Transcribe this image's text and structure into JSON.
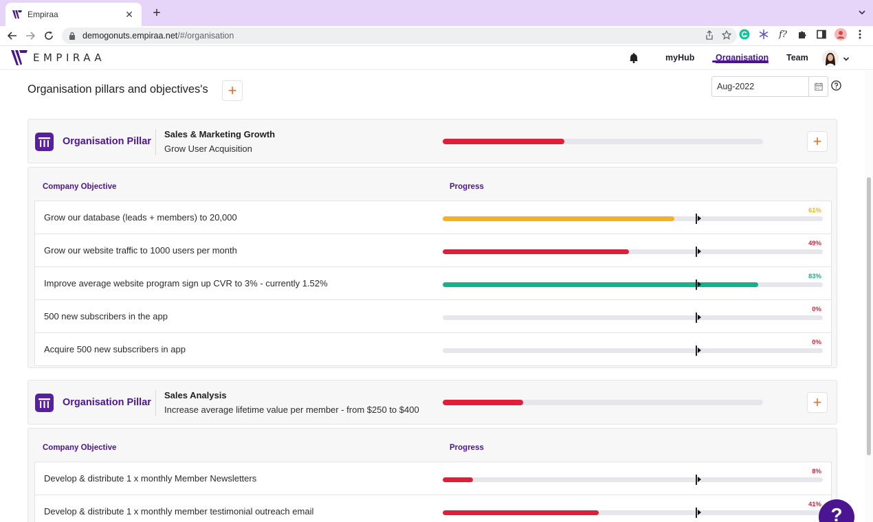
{
  "browser": {
    "tab_title": "Empiraa",
    "url_host": "demogonuts.empiraa.net",
    "url_path": "/#/organisation"
  },
  "app": {
    "logo_text": "EMPIRAA",
    "nav": {
      "myhub": "myHub",
      "organisation": "Organisation",
      "team": "Team"
    }
  },
  "page": {
    "title": "Organisation pillars and objectives's",
    "date_value": "Aug-2022"
  },
  "colors": {
    "brand": "#4b1591",
    "red": "#e11d38",
    "amber": "#f5b21a",
    "green": "#16b08d",
    "orange_plus": "#ef6a1c"
  },
  "pillars": [
    {
      "label": "Organisation Pillar",
      "name": "Sales & Marketing Growth",
      "subtitle": "Grow User Acquisition",
      "progress": 0.38,
      "objectives_header": {
        "objective": "Company Objective",
        "progress": "Progress"
      },
      "objectives": [
        {
          "name": "Grow our database (leads + members) to 20,000",
          "percent": 61,
          "label": "61%",
          "color": "#f5b21a"
        },
        {
          "name": "Grow our website traffic to 1000 users per month",
          "percent": 49,
          "label": "49%",
          "color": "#e11d38"
        },
        {
          "name": "Improve average website program sign up CVR to 3% - currently 1.52%",
          "percent": 83,
          "label": "83%",
          "color": "#16b08d"
        },
        {
          "name": "500 new subscribers in the app",
          "percent": 0,
          "label": "0%",
          "color": "#e11d38"
        },
        {
          "name": "Acquire 500 new subscribers in app",
          "percent": 0,
          "label": "0%",
          "color": "#e11d38"
        }
      ]
    },
    {
      "label": "Organisation Pillar",
      "name": "Sales Analysis",
      "subtitle": "Increase average lifetime value per member - from $250 to $400",
      "progress": 0.25,
      "objectives_header": {
        "objective": "Company Objective",
        "progress": "Progress"
      },
      "objectives": [
        {
          "name": "Develop & distribute 1 x monthly Member Newsletters",
          "percent": 8,
          "label": "8%",
          "color": "#e11d38"
        },
        {
          "name": "Develop & distribute 1 x monthly member testimonial outreach email",
          "percent": 41,
          "label": "41%",
          "color": "#e11d38"
        }
      ]
    }
  ],
  "help_bubble": "?"
}
